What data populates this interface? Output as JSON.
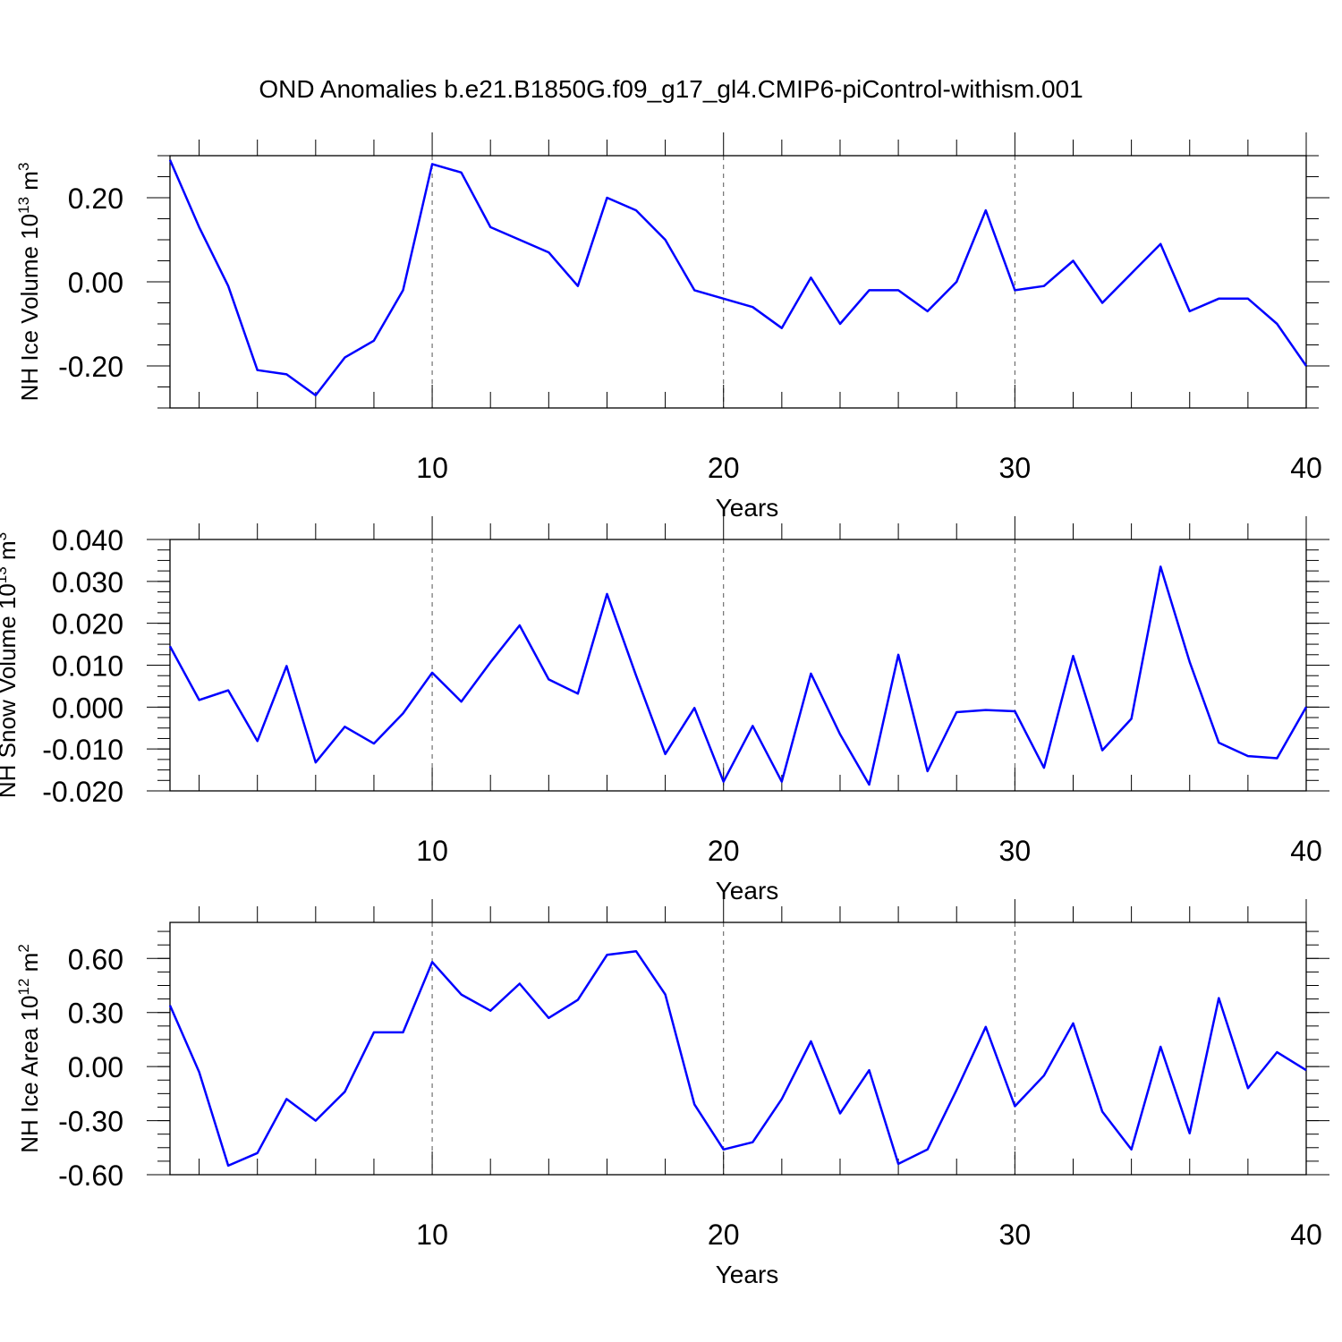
{
  "figure": {
    "title": "OND Anomalies b.e21.B1850G.f09_g17_gl4.CMIP6-piControl-withism.001",
    "line_color": "#0000ff"
  },
  "chart_data": [
    {
      "type": "line",
      "title": "",
      "xlabel": "Years",
      "ylabel": "NH Ice Volume",
      "ylabel_unit_base": "10",
      "ylabel_unit_exp": "13",
      "ylabel_unit_sym": "m",
      "ylabel_unit_sym_exp": "3",
      "xlim": [
        1,
        40
      ],
      "ylim": [
        -0.3,
        0.3
      ],
      "xticks": [
        10,
        20,
        30,
        40
      ],
      "yticks": [
        0.2,
        0.0,
        -0.2
      ],
      "ytick_labels": [
        "0.20",
        "0.00",
        "-0.20"
      ],
      "grid": "vertical dashed at major x ticks",
      "series": [
        {
          "x": [
            1,
            2,
            3,
            4,
            5,
            6,
            7,
            8,
            9,
            10,
            11,
            12,
            13,
            14,
            15,
            16,
            17,
            18,
            19,
            20,
            21,
            22,
            23,
            24,
            25,
            26,
            27,
            28,
            29,
            30,
            31,
            32,
            33,
            34,
            35,
            36,
            37,
            38,
            39,
            40
          ],
          "values": [
            0.29,
            0.13,
            -0.01,
            -0.21,
            -0.22,
            -0.27,
            -0.18,
            -0.14,
            -0.02,
            0.28,
            0.26,
            0.13,
            0.1,
            0.07,
            -0.01,
            0.2,
            0.17,
            0.1,
            -0.02,
            -0.04,
            -0.06,
            -0.11,
            0.01,
            -0.1,
            -0.02,
            -0.02,
            -0.07,
            0.0,
            0.17,
            -0.02,
            -0.01,
            0.05,
            -0.05,
            0.02,
            0.09,
            -0.07,
            -0.04,
            -0.04,
            -0.1,
            -0.2
          ]
        }
      ]
    },
    {
      "type": "line",
      "title": "",
      "xlabel": "Years",
      "ylabel": "NH Snow Volume",
      "ylabel_unit_base": "10",
      "ylabel_unit_exp": "13",
      "ylabel_unit_sym": "m",
      "ylabel_unit_sym_exp": "3",
      "xlim": [
        1,
        40
      ],
      "ylim": [
        -0.02,
        0.04
      ],
      "xticks": [
        10,
        20,
        30,
        40
      ],
      "yticks": [
        0.04,
        0.03,
        0.02,
        0.01,
        0.0,
        -0.01,
        -0.02
      ],
      "ytick_labels": [
        "0.040",
        "0.030",
        "0.020",
        "0.010",
        "0.000",
        "-0.010",
        "-0.020"
      ],
      "grid": "vertical dashed at major x ticks",
      "series": [
        {
          "x": [
            1,
            2,
            3,
            4,
            5,
            6,
            7,
            8,
            9,
            10,
            11,
            12,
            13,
            14,
            15,
            16,
            17,
            18,
            19,
            20,
            21,
            22,
            23,
            24,
            25,
            26,
            27,
            28,
            29,
            30,
            31,
            32,
            33,
            34,
            35,
            36,
            37,
            38,
            39,
            40
          ],
          "values": [
            0.0145,
            0.0017,
            0.004,
            -0.0081,
            0.0098,
            -0.0132,
            -0.0047,
            -0.0087,
            -0.0015,
            0.0082,
            0.0013,
            0.0107,
            0.0195,
            0.0066,
            0.0032,
            0.027,
            0.0075,
            -0.0112,
            -0.0002,
            -0.0178,
            -0.0045,
            -0.0178,
            0.008,
            -0.0065,
            -0.0185,
            0.0125,
            -0.0153,
            -0.0012,
            -0.0007,
            -0.001,
            -0.0145,
            0.0122,
            -0.0103,
            -0.0028,
            0.0335,
            0.0108,
            -0.0085,
            -0.0117,
            -0.0122,
            0.0
          ]
        }
      ]
    },
    {
      "type": "line",
      "title": "",
      "xlabel": "Years",
      "ylabel": "NH Ice Area",
      "ylabel_unit_base": "10",
      "ylabel_unit_exp": "12",
      "ylabel_unit_sym": "m",
      "ylabel_unit_sym_exp": "2",
      "xlim": [
        1,
        40
      ],
      "ylim": [
        -0.6,
        0.8
      ],
      "xticks": [
        10,
        20,
        30,
        40
      ],
      "yticks": [
        0.6,
        0.3,
        0.0,
        -0.3,
        -0.6
      ],
      "ytick_labels": [
        "0.60",
        "0.30",
        "0.00",
        "-0.30",
        "-0.60"
      ],
      "grid": "vertical dashed at major x ticks",
      "series": [
        {
          "x": [
            1,
            2,
            3,
            4,
            5,
            6,
            7,
            8,
            9,
            10,
            11,
            12,
            13,
            14,
            15,
            16,
            17,
            18,
            19,
            20,
            21,
            22,
            23,
            24,
            25,
            26,
            27,
            28,
            29,
            30,
            31,
            32,
            33,
            34,
            35,
            36,
            37,
            38,
            39,
            40
          ],
          "values": [
            0.34,
            -0.03,
            -0.55,
            -0.48,
            -0.18,
            -0.3,
            -0.14,
            0.19,
            0.19,
            0.58,
            0.4,
            0.31,
            0.46,
            0.27,
            0.37,
            0.62,
            0.64,
            0.4,
            -0.21,
            -0.46,
            -0.42,
            -0.18,
            0.14,
            -0.26,
            -0.02,
            -0.54,
            -0.46,
            -0.13,
            0.22,
            -0.22,
            -0.05,
            0.24,
            -0.25,
            -0.46,
            0.11,
            -0.37,
            0.38,
            -0.12,
            0.08,
            -0.02
          ]
        }
      ]
    }
  ]
}
